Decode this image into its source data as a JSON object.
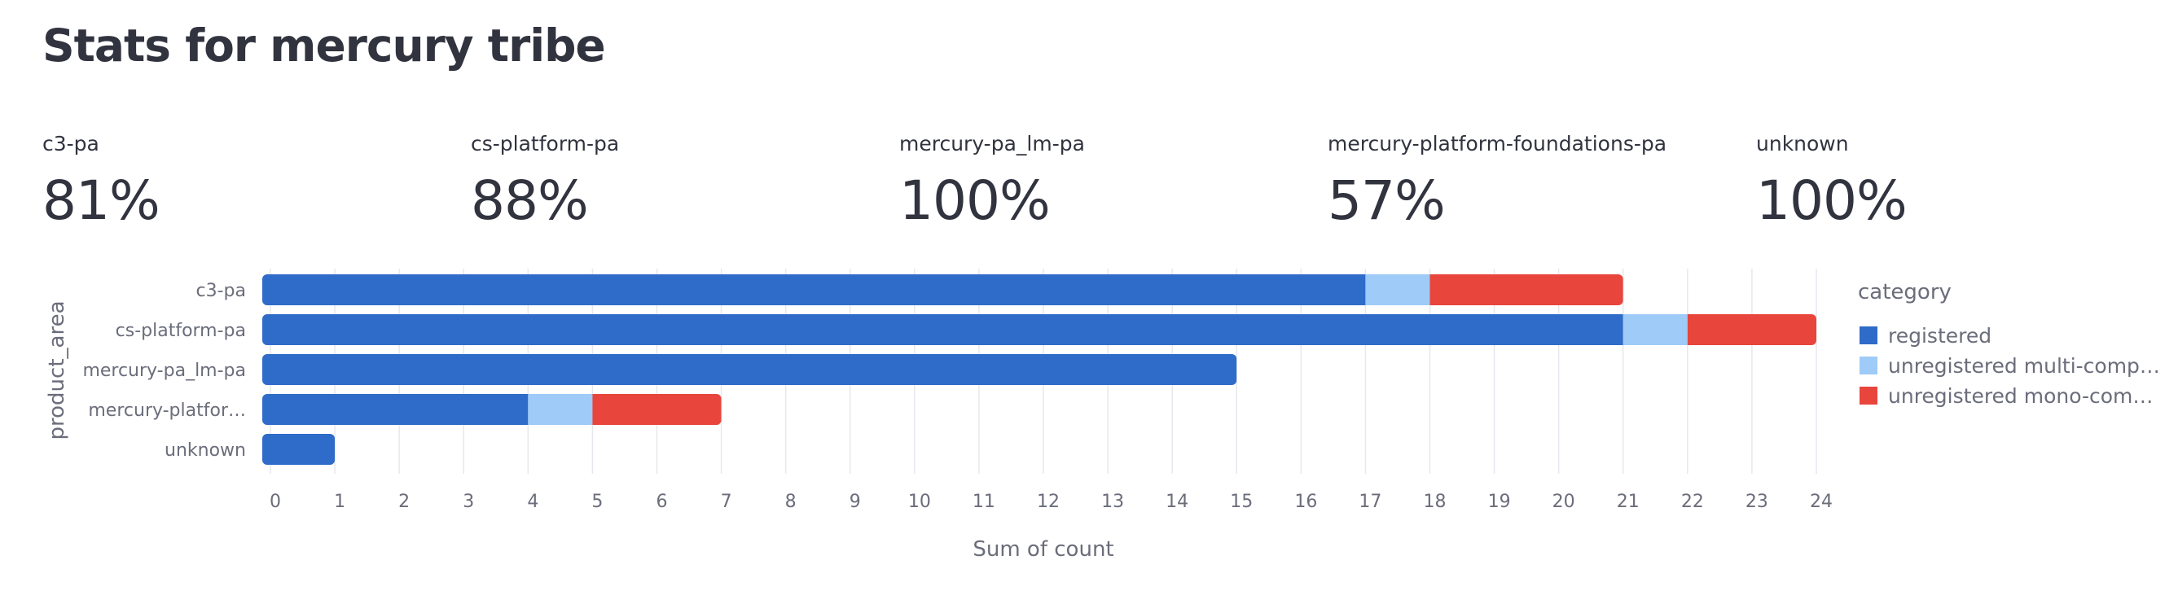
{
  "page": {
    "title": "Stats for mercury tribe"
  },
  "metrics": [
    {
      "label": "c3-pa",
      "value": "81%"
    },
    {
      "label": "cs-platform-pa",
      "value": "88%"
    },
    {
      "label": "mercury-pa_lm-pa",
      "value": "100%"
    },
    {
      "label": "mercury-platform-foundations-pa",
      "value": "57%"
    },
    {
      "label": "unknown",
      "value": "100%"
    }
  ],
  "chart_data": {
    "type": "bar",
    "orientation": "horizontal",
    "stacked": true,
    "categories": [
      "c3-pa",
      "cs-platform-pa",
      "mercury-pa_lm-pa",
      "mercury-platform-foundations-pa",
      "unknown"
    ],
    "category_tick_labels": [
      "c3-pa",
      "cs-platform-pa",
      "mercury-pa_lm-pa",
      "mercury-platfor…",
      "unknown"
    ],
    "series": [
      {
        "name": "registered",
        "legend_label": "registered",
        "color": "#2f6bc8",
        "values": [
          17,
          21,
          15,
          4,
          1
        ]
      },
      {
        "name": "unregistered multi-component",
        "legend_label": "unregistered multi-comp…",
        "color": "#9ecbf8",
        "values": [
          1,
          1,
          0,
          1,
          0
        ]
      },
      {
        "name": "unregistered mono-component",
        "legend_label": "unregistered mono-com…",
        "color": "#e8453c",
        "values": [
          3,
          2,
          0,
          2,
          0
        ]
      }
    ],
    "xlabel": "Sum of count",
    "ylabel": "product_area",
    "xlim": [
      0,
      24
    ],
    "x_ticks": [
      0,
      1,
      2,
      3,
      4,
      5,
      6,
      7,
      8,
      9,
      10,
      11,
      12,
      13,
      14,
      15,
      16,
      17,
      18,
      19,
      20,
      21,
      22,
      23,
      24
    ],
    "grid": true,
    "legend_title": "category",
    "legend_position": "right"
  }
}
